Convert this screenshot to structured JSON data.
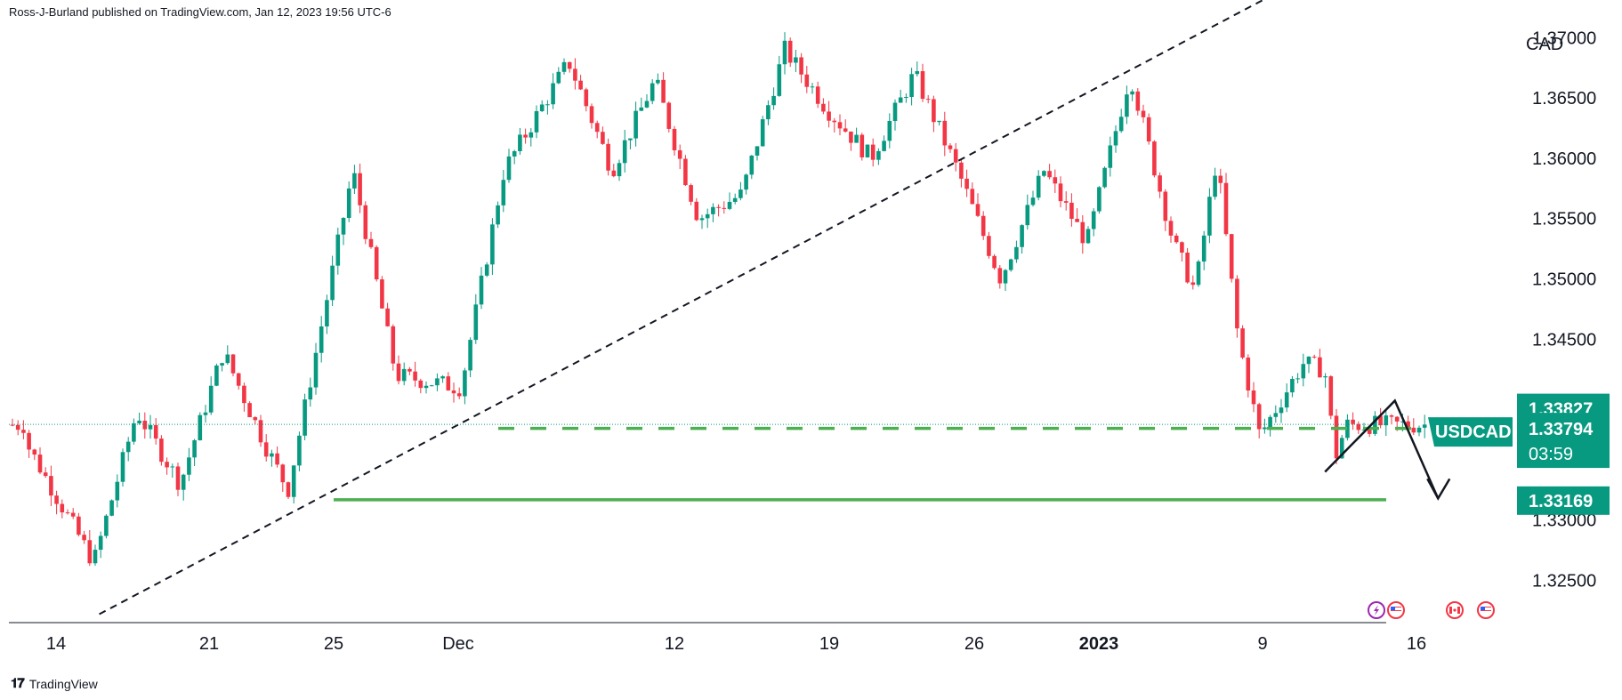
{
  "header": {
    "published_by": "Ross-J-Burland published on TradingView.com, Jan 12, 2023 19:56 UTC-6"
  },
  "footer": {
    "brand": "TradingView",
    "logo_icon": "tradingview-logo-icon"
  },
  "colors": {
    "up": "#089981",
    "down": "#f23645",
    "support": "#4caf50",
    "current_price": "#089981",
    "trendline": "#131722",
    "projection": "#131722",
    "axis_line": "#131722"
  },
  "chart_data": {
    "type": "candlestick",
    "symbol": "USDCAD",
    "currency": "CAD",
    "y_ticks": [
      "1.37000",
      "1.36500",
      "1.36000",
      "1.35500",
      "1.35000",
      "1.34500",
      "1.33000",
      "1.32500"
    ],
    "ylim": [
      1.3215,
      1.3715
    ],
    "x_ticks": [
      {
        "label": "14",
        "bold": false
      },
      {
        "label": "21",
        "bold": false
      },
      {
        "label": "25",
        "bold": false
      },
      {
        "label": "Dec",
        "bold": false
      },
      {
        "label": "12",
        "bold": false
      },
      {
        "label": "19",
        "bold": false
      },
      {
        "label": "26",
        "bold": false
      },
      {
        "label": "2023",
        "bold": true
      },
      {
        "label": "9",
        "bold": false
      },
      {
        "label": "16",
        "bold": false
      }
    ],
    "price_labels": {
      "upper_level": "1.33827",
      "current": "1.33794",
      "countdown": "03:59",
      "support": "1.33169"
    },
    "levels": {
      "resistance_dashed": 1.33827,
      "support": 1.33169,
      "current": 1.33794
    },
    "trendline": {
      "from": [
        "Nov 16",
        1.3222
      ],
      "to": [
        "Jan 4",
        1.3685
      ]
    },
    "projection": [
      [
        "Jan 13",
        1.334
      ],
      [
        "Jan 15",
        1.3399
      ],
      [
        "Jan 17",
        1.3318
      ]
    ],
    "event_icons": [
      "lightning-icon",
      "us-flag-icon",
      "ca-flag-icon",
      "us-flag-icon"
    ],
    "candle_anchors": [
      [
        "Nov 13",
        1.336
      ],
      [
        "Nov 16",
        1.3265
      ],
      [
        "Nov 18",
        1.339
      ],
      [
        "Nov 20",
        1.333
      ],
      [
        "Nov 22",
        1.344
      ],
      [
        "Nov 24",
        1.336
      ],
      [
        "Nov 25",
        1.3325
      ],
      [
        "Nov 28",
        1.359
      ],
      [
        "Nov 30",
        1.342
      ],
      [
        "Dec 3",
        1.341
      ],
      [
        "Dec 5",
        1.359
      ],
      [
        "Dec 8",
        1.368
      ],
      [
        "Dec 10",
        1.359
      ],
      [
        "Dec 12",
        1.3665
      ],
      [
        "Dec 14",
        1.355
      ],
      [
        "Dec 16",
        1.357
      ],
      [
        "Dec 18",
        1.369
      ],
      [
        "Dec 20",
        1.364
      ],
      [
        "Dec 22",
        1.36
      ],
      [
        "Dec 24",
        1.367
      ],
      [
        "Dec 26",
        1.359
      ],
      [
        "Dec 28",
        1.35
      ],
      [
        "Dec 30",
        1.359
      ],
      [
        "Jan 1",
        1.353
      ],
      [
        "Jan 3",
        1.367
      ],
      [
        "Jan 5",
        1.353
      ],
      [
        "Jan 6",
        1.349
      ],
      [
        "Jan 7",
        1.36
      ],
      [
        "Jan 8",
        1.345
      ],
      [
        "Jan 9",
        1.337
      ],
      [
        "Jan 10",
        1.34
      ],
      [
        "Jan 11",
        1.343
      ],
      [
        "Jan 12",
        1.3425
      ],
      [
        "Jan 12.5",
        1.3352
      ],
      [
        "Jan 13",
        1.3379
      ]
    ]
  }
}
